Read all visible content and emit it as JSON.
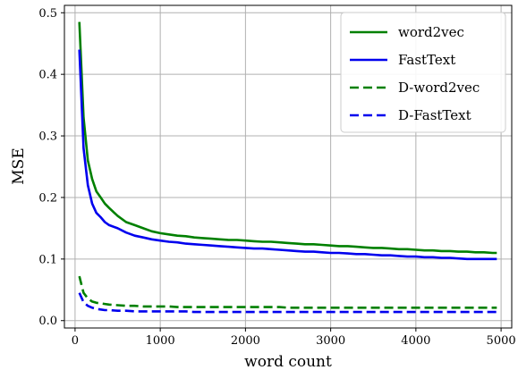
{
  "chart_data": {
    "type": "line",
    "title": "",
    "xlabel": "word count",
    "ylabel": "MSE",
    "xlim": [
      -125,
      5125
    ],
    "ylim": [
      -0.012,
      0.512
    ],
    "xticks": [
      0,
      1000,
      2000,
      3000,
      4000,
      5000
    ],
    "yticks": [
      0.0,
      0.1,
      0.2,
      0.3,
      0.4,
      0.5
    ],
    "xtick_labels": [
      "0",
      "1000",
      "2000",
      "3000",
      "4000",
      "5000"
    ],
    "ytick_labels": [
      "0.0",
      "0.1",
      "0.2",
      "0.3",
      "0.4",
      "0.5"
    ],
    "grid": true,
    "legend_position": "top-right",
    "x": [
      50,
      100,
      150,
      200,
      250,
      300,
      350,
      400,
      500,
      600,
      700,
      800,
      900,
      1000,
      1100,
      1200,
      1300,
      1400,
      1500,
      1600,
      1700,
      1800,
      1900,
      2000,
      2100,
      2200,
      2300,
      2400,
      2500,
      2600,
      2700,
      2800,
      2900,
      3000,
      3100,
      3200,
      3300,
      3400,
      3500,
      3600,
      3700,
      3800,
      3900,
      4000,
      4100,
      4200,
      4300,
      4400,
      4500,
      4600,
      4700,
      4800,
      4900,
      4950
    ],
    "series": [
      {
        "name": "word2vec",
        "color": "#008000",
        "dash": "solid",
        "values": [
          0.485,
          0.33,
          0.26,
          0.23,
          0.21,
          0.2,
          0.19,
          0.183,
          0.17,
          0.16,
          0.155,
          0.15,
          0.145,
          0.142,
          0.14,
          0.138,
          0.137,
          0.135,
          0.134,
          0.133,
          0.132,
          0.131,
          0.131,
          0.13,
          0.129,
          0.128,
          0.128,
          0.127,
          0.126,
          0.125,
          0.124,
          0.124,
          0.123,
          0.122,
          0.121,
          0.121,
          0.12,
          0.119,
          0.118,
          0.118,
          0.117,
          0.116,
          0.116,
          0.115,
          0.114,
          0.114,
          0.113,
          0.113,
          0.112,
          0.112,
          0.111,
          0.111,
          0.11,
          0.11
        ]
      },
      {
        "name": "FastText",
        "color": "#0000ee",
        "dash": "solid",
        "values": [
          0.44,
          0.28,
          0.22,
          0.19,
          0.175,
          0.168,
          0.16,
          0.155,
          0.15,
          0.143,
          0.138,
          0.135,
          0.132,
          0.13,
          0.128,
          0.127,
          0.125,
          0.124,
          0.123,
          0.122,
          0.121,
          0.12,
          0.119,
          0.118,
          0.117,
          0.117,
          0.116,
          0.115,
          0.114,
          0.113,
          0.112,
          0.112,
          0.111,
          0.11,
          0.11,
          0.109,
          0.108,
          0.108,
          0.107,
          0.106,
          0.106,
          0.105,
          0.104,
          0.104,
          0.103,
          0.103,
          0.102,
          0.102,
          0.101,
          0.1,
          0.1,
          0.1,
          0.1,
          0.1
        ]
      },
      {
        "name": "D-word2vec",
        "color": "#008000",
        "dash": "dashed",
        "values": [
          0.072,
          0.045,
          0.036,
          0.031,
          0.029,
          0.028,
          0.027,
          0.026,
          0.025,
          0.024,
          0.024,
          0.023,
          0.023,
          0.023,
          0.023,
          0.022,
          0.022,
          0.022,
          0.022,
          0.022,
          0.022,
          0.022,
          0.022,
          0.022,
          0.022,
          0.022,
          0.022,
          0.022,
          0.021,
          0.021,
          0.021,
          0.021,
          0.021,
          0.021,
          0.021,
          0.021,
          0.021,
          0.021,
          0.021,
          0.021,
          0.021,
          0.021,
          0.021,
          0.021,
          0.021,
          0.021,
          0.021,
          0.021,
          0.021,
          0.021,
          0.021,
          0.021,
          0.021,
          0.021
        ]
      },
      {
        "name": "D-FastText",
        "color": "#0000ee",
        "dash": "dashed",
        "values": [
          0.045,
          0.03,
          0.024,
          0.021,
          0.019,
          0.018,
          0.017,
          0.017,
          0.016,
          0.016,
          0.015,
          0.015,
          0.015,
          0.015,
          0.015,
          0.015,
          0.015,
          0.014,
          0.014,
          0.014,
          0.014,
          0.014,
          0.014,
          0.014,
          0.014,
          0.014,
          0.014,
          0.014,
          0.014,
          0.014,
          0.014,
          0.014,
          0.014,
          0.014,
          0.014,
          0.014,
          0.014,
          0.014,
          0.014,
          0.014,
          0.014,
          0.014,
          0.014,
          0.014,
          0.014,
          0.014,
          0.014,
          0.014,
          0.014,
          0.014,
          0.014,
          0.014,
          0.014,
          0.014
        ]
      }
    ]
  }
}
